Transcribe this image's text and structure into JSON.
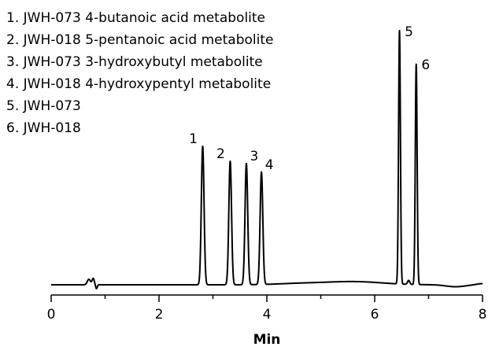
{
  "chart_data": {
    "type": "line",
    "xlabel": "Min",
    "ylabel": "",
    "xlim": [
      0,
      8
    ],
    "x_ticks": [
      "0",
      "2",
      "4",
      "6",
      "8"
    ],
    "grid": false,
    "legend_position": "top-left",
    "legend": [
      "1. JWH-073 4-butanoic acid metabolite",
      "2. JWH-018 5-pentanoic acid metabolite",
      "3. JWH-073 3-hydroxybutyl metabolite",
      "4. JWH-018 4-hydroxypentyl metabolite",
      "5. JWH-073",
      "6. JWH-018"
    ],
    "peaks": [
      {
        "label": "1",
        "rt": 2.81,
        "height": 176,
        "width": 0.025
      },
      {
        "label": "2",
        "rt": 3.32,
        "height": 157,
        "width": 0.025
      },
      {
        "label": "3",
        "rt": 3.62,
        "height": 154,
        "width": 0.025
      },
      {
        "label": "4",
        "rt": 3.9,
        "height": 143,
        "width": 0.025
      },
      {
        "label": "5",
        "rt": 6.46,
        "height": 322,
        "width": 0.017
      },
      {
        "label": "6",
        "rt": 6.77,
        "height": 280,
        "width": 0.017
      }
    ],
    "minor_features": [
      {
        "rt": 0.7,
        "height": 7,
        "width": 0.03
      },
      {
        "rt": 0.78,
        "height": 8,
        "width": 0.02
      },
      {
        "rt": 0.84,
        "height": -5,
        "width": 0.015
      },
      {
        "rt": 6.63,
        "height": 5,
        "width": 0.02
      }
    ],
    "line_color": "#000000"
  }
}
